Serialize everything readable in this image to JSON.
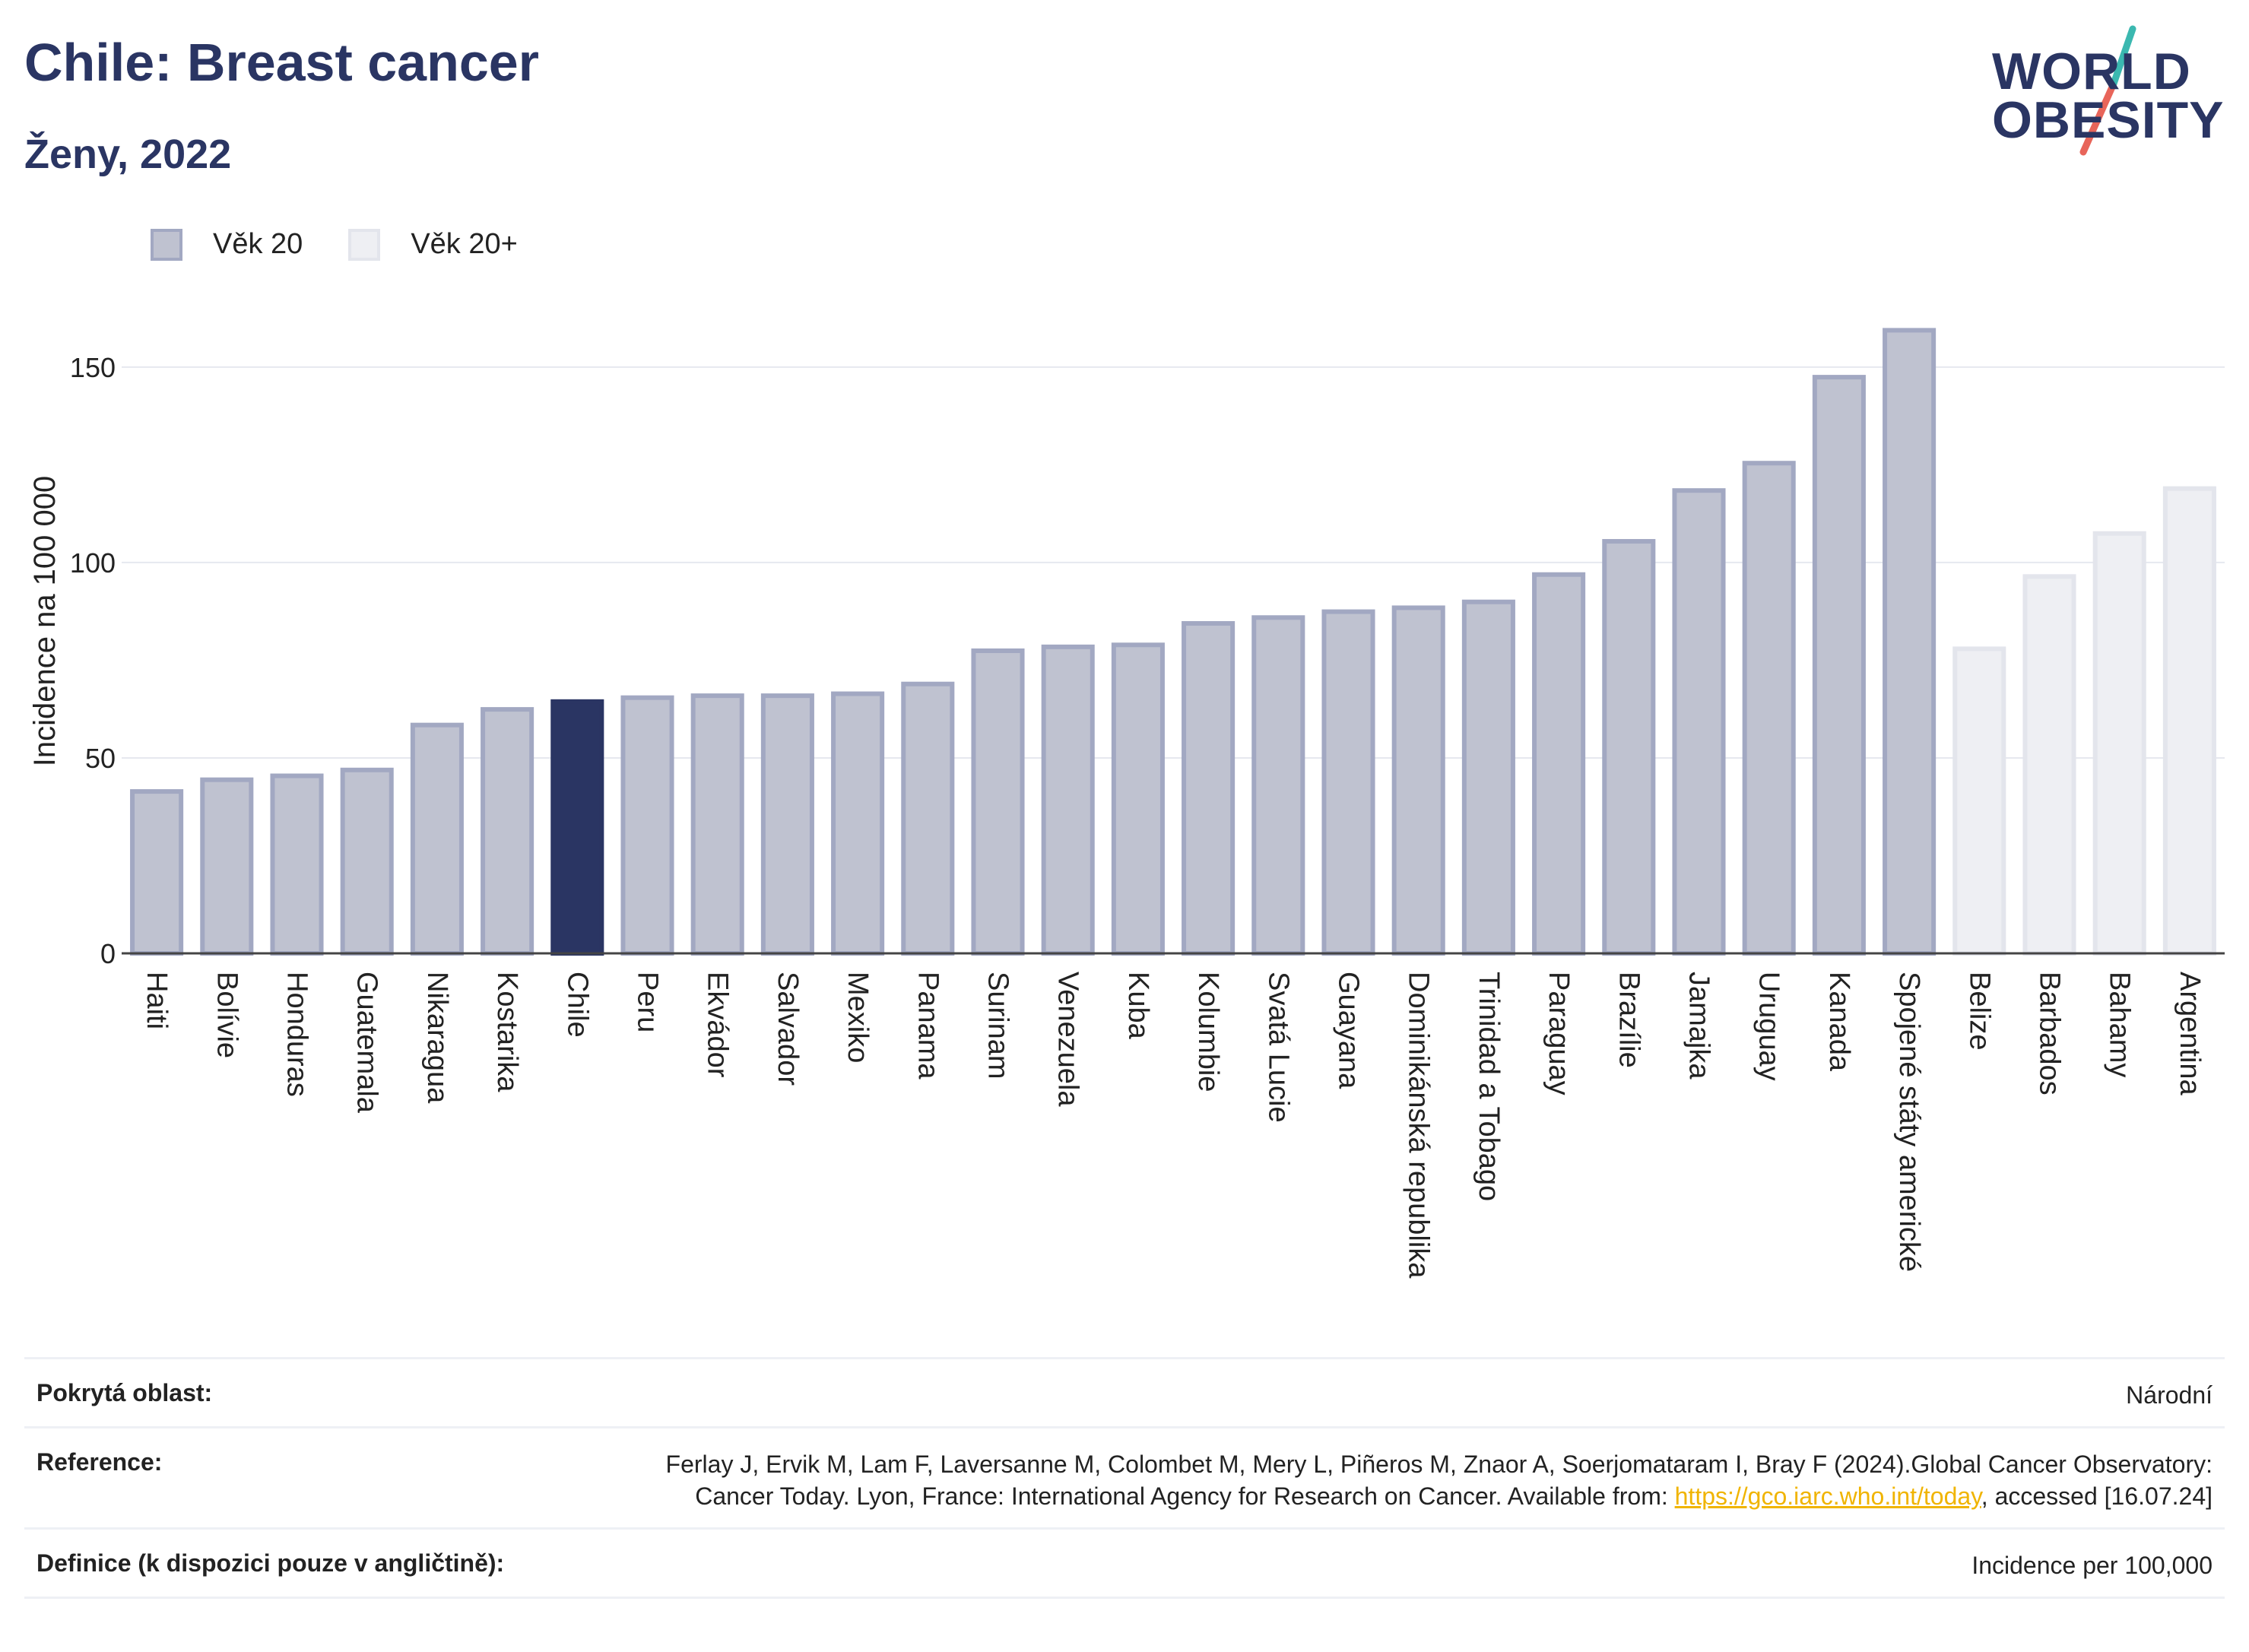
{
  "header": {
    "title": "Chile: Breast cancer",
    "subtitle": "Ženy, 2022"
  },
  "logo": {
    "line1": "WORLD",
    "line2": "OBESITY",
    "colors": {
      "teal": "#3bb8b0",
      "coral": "#e8655a",
      "navy": "#2a3563"
    }
  },
  "legend": [
    {
      "label": "Věk 20",
      "color": "#bfc2d0",
      "border": "#a2a8c2"
    },
    {
      "label": "Věk 20+",
      "color": "#eeeff3",
      "border": "#e3e5ec"
    }
  ],
  "chart_data": {
    "type": "bar",
    "title": "Chile: Breast cancer",
    "subtitle": "Ženy, 2022",
    "ylabel": "Incidence na 100 000",
    "xlabel": "",
    "ylim": [
      0,
      170
    ],
    "yticks": [
      0,
      50,
      100,
      150
    ],
    "grid": true,
    "legend_position": "top-left",
    "highlight": "Chile",
    "colors": {
      "Věk 20": "#bfc2d0",
      "Věk 20+": "#eeeff3",
      "highlight": "#2a3563"
    },
    "categories": [
      "Haiti",
      "Bolívie",
      "Honduras",
      "Guatemala",
      "Nikaragua",
      "Kostarika",
      "Chile",
      "Peru",
      "Ekvádor",
      "Salvador",
      "Mexiko",
      "Panama",
      "Surinam",
      "Venezuela",
      "Kuba",
      "Kolumbie",
      "Svatá Lucie",
      "Guayana",
      "Dominikánská republika",
      "Trinidad a Tobago",
      "Paraguay",
      "Brazílie",
      "Jamajka",
      "Uruguay",
      "Kanada",
      "Spojené státy americké",
      "Belize",
      "Barbados",
      "Bahamy",
      "Argentina"
    ],
    "values": [
      42,
      45,
      46,
      47.5,
      59,
      63,
      65,
      66,
      66.5,
      66.5,
      67,
      69.5,
      78,
      79,
      79.5,
      85,
      86.5,
      88,
      89,
      90.5,
      97.5,
      106,
      119,
      126,
      148,
      160,
      78.5,
      97,
      108,
      119.5
    ],
    "groups": [
      "Věk 20",
      "Věk 20",
      "Věk 20",
      "Věk 20",
      "Věk 20",
      "Věk 20",
      "Věk 20",
      "Věk 20",
      "Věk 20",
      "Věk 20",
      "Věk 20",
      "Věk 20",
      "Věk 20",
      "Věk 20",
      "Věk 20",
      "Věk 20",
      "Věk 20",
      "Věk 20",
      "Věk 20",
      "Věk 20",
      "Věk 20",
      "Věk 20",
      "Věk 20",
      "Věk 20",
      "Věk 20",
      "Věk 20",
      "Věk 20+",
      "Věk 20+",
      "Věk 20+",
      "Věk 20+"
    ]
  },
  "footer": {
    "coverage_label": "Pokrytá oblast:",
    "coverage_value": "Národní",
    "reference_label": "Reference:",
    "reference_text": "Ferlay J, Ervik M, Lam F, Laversanne M, Colombet M, Mery L, Piñeros M, Znaor A, Soerjomataram I, Bray F (2024).Global Cancer Observatory: Cancer Today. Lyon, France: International Agency for Research on Cancer. Available from: ",
    "reference_link": "https://gco.iarc.who.int/today",
    "reference_suffix": ", accessed [16.07.24]",
    "definition_label": "Definice (k dispozici pouze v angličtině):",
    "definition_value": "Incidence per 100,000"
  }
}
